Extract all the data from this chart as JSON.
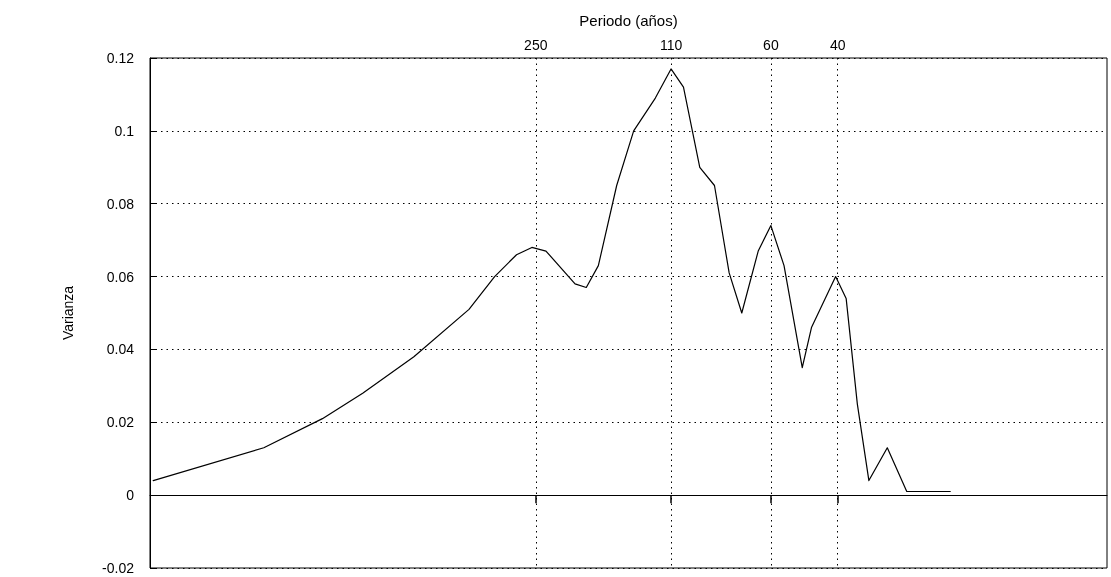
{
  "chart_data": {
    "type": "line",
    "xlabel": "Periodo (años)",
    "ylabel": "Varianza",
    "xlim": [
      2600,
      7.8
    ],
    "xticks": [
      250,
      110,
      60,
      40
    ],
    "log": "x",
    "ylim": [
      -0.02,
      0.12
    ],
    "yticks": [
      -0.02,
      0,
      0.02,
      0.04,
      0.06,
      0.08,
      0.1,
      0.12
    ],
    "grid": true,
    "marker": "none",
    "line_style": "solid",
    "series": [
      {
        "color": "#000000",
        "x": [
          2550,
          1303,
          913,
          715,
          524,
          375,
          321,
          281,
          256,
          235,
          197,
          184,
          171,
          153,
          138,
          121,
          110,
          102,
          92.4,
          84.5,
          77.3,
          71.6,
          64.8,
          60,
          55.4,
          49.6,
          46.9,
          40.5,
          38,
          35.5,
          33.1,
          29.6,
          26.3,
          23.8,
          22.3,
          20.2
        ],
        "values": [
          0.004,
          0.013,
          0.021,
          0.028,
          0.038,
          0.051,
          0.06,
          0.066,
          0.068,
          0.067,
          0.058,
          0.057,
          0.063,
          0.085,
          0.1,
          0.109,
          0.117,
          0.112,
          0.09,
          0.085,
          0.061,
          0.05,
          0.067,
          0.074,
          0.063,
          0.035,
          0.046,
          0.06,
          0.054,
          0.025,
          0.004,
          0.013,
          0.001,
          0.001,
          0.001,
          0.001
        ]
      }
    ]
  }
}
